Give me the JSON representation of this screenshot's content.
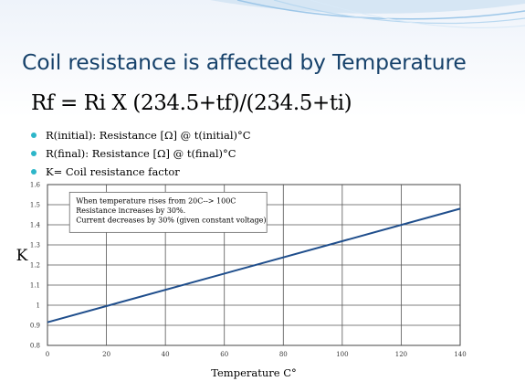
{
  "slide": {
    "title": "Coil resistance is affected by Temperature",
    "formula": "Rf = Ri X (234.5+tf)/(234.5+ti)",
    "bullets": [
      "R(initial): Resistance [Ω] @ t(initial)°C",
      "R(final): Resistance [Ω] @ t(final)°C",
      "K= Coil resistance factor"
    ],
    "accent_color": "#2db6c9",
    "title_color": "#17426b"
  },
  "chart_data": {
    "type": "line",
    "title": "",
    "xlabel": "Temperature C°",
    "ylabel": "K",
    "xlim": [
      0,
      140
    ],
    "ylim": [
      0.8,
      1.6
    ],
    "xticks": [
      0,
      20,
      40,
      60,
      80,
      100,
      120,
      140
    ],
    "yticks": [
      0.8,
      0.9,
      1,
      1.1,
      1.2,
      1.3,
      1.4,
      1.5,
      1.6
    ],
    "grid": true,
    "series": [
      {
        "color": "#1f4e8c",
        "points": [
          [
            0,
            0.915
          ],
          [
            140,
            1.48
          ]
        ]
      }
    ],
    "annotation": [
      "When temperature rises from 20C--> 100C",
      "Resistance increases by 30%.",
      "Current decreases by 30%  (given constant voltage)"
    ]
  }
}
